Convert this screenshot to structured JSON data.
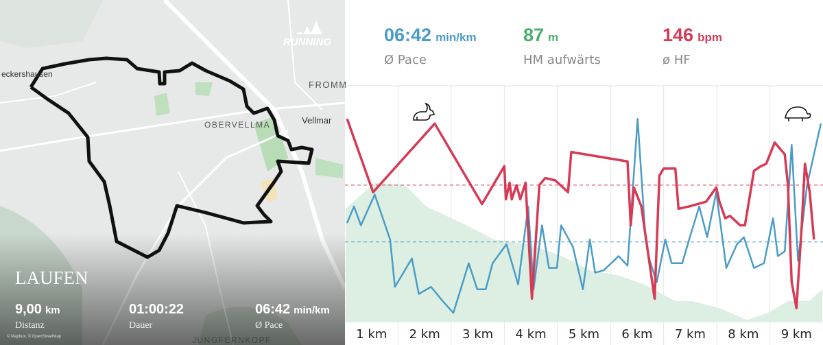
{
  "map": {
    "brand": "RUNNING",
    "activity": "LAUFEN",
    "places": [
      "eckershausen",
      "OBERVELLMA",
      "Vellmar",
      "FROMM",
      "JUNGFERNKOPF"
    ],
    "attribution": "© Mapbox, © OpenStreetMap",
    "stats": [
      {
        "value": "9,00",
        "unit": "km",
        "label": "Distanz"
      },
      {
        "value": "01:00:22",
        "label": "Dauer"
      },
      {
        "value": "06:42",
        "unit": "min/km",
        "label": "Ø Pace"
      }
    ]
  },
  "summary": [
    {
      "value": "06:42",
      "unit": "min/km",
      "label": "Ø Pace",
      "color": "#4a9cc7"
    },
    {
      "value": "87",
      "unit": "m",
      "label": "HM aufwärts",
      "color": "#4caf6e"
    },
    {
      "value": "146",
      "unit": "bpm",
      "label": "ø HF",
      "color": "#d63a54"
    }
  ],
  "chart_data": {
    "type": "line",
    "xlim": [
      0.5,
      9.5
    ],
    "ylim": [
      0,
      100
    ],
    "xticks": [
      {
        "value": 1,
        "label": "1 km"
      },
      {
        "value": 2,
        "label": "2 km"
      },
      {
        "value": 3,
        "label": "3 km"
      },
      {
        "value": 4,
        "label": "4 km"
      },
      {
        "value": 5,
        "label": "5 km"
      },
      {
        "value": 6,
        "label": "6 km"
      },
      {
        "value": 7,
        "label": "7 km"
      },
      {
        "value": 8,
        "label": "8 km"
      },
      {
        "value": 9,
        "label": "9 km"
      }
    ],
    "reference_lines": [
      {
        "value": 58,
        "color": "#d63a54"
      },
      {
        "value": 34,
        "color": "#4a9cc7"
      }
    ],
    "series": [
      {
        "type": "area",
        "color": "#dcefe2",
        "x": [
          0.51,
          1.06,
          1.63,
          2.03,
          2.41,
          2.79,
          3.31,
          3.95,
          4.59,
          5.11,
          5.62,
          6.14,
          6.72,
          7.04,
          7.55,
          8.07,
          8.46,
          8.84,
          9.23,
          9.49
        ],
        "values": [
          48,
          59,
          58,
          49,
          45,
          41,
          35,
          33,
          28,
          22,
          20,
          16,
          9,
          9,
          6,
          1,
          4,
          9,
          9,
          14
        ]
      },
      {
        "type": "line",
        "color": "#4a9cc7",
        "x": [
          0.54,
          0.67,
          0.8,
          1.06,
          1.35,
          1.44,
          1.76,
          1.89,
          2.12,
          2.34,
          2.54,
          2.83,
          2.99,
          3.15,
          3.28,
          3.54,
          3.76,
          3.95,
          4.05,
          4.21,
          4.34,
          4.49,
          4.57,
          4.79,
          4.98,
          5.11,
          5.21,
          5.37,
          5.56,
          5.65,
          5.82,
          6.01,
          6.16,
          6.24,
          6.37,
          6.53,
          6.65,
          6.85,
          6.98,
          7.17,
          7.32,
          7.49,
          7.68,
          7.88,
          8.01,
          8.2,
          8.39,
          8.56,
          8.65,
          8.78,
          8.91,
          9.03,
          9.2,
          9.46
        ],
        "values": [
          42,
          49,
          41,
          54,
          35,
          15,
          27,
          12,
          15,
          9,
          4,
          25,
          14,
          14,
          25,
          33,
          16,
          49,
          14,
          41,
          23,
          23,
          41,
          32,
          14,
          35,
          21,
          22,
          26,
          28,
          24,
          86,
          35,
          26,
          17,
          35,
          25,
          25,
          35,
          49,
          36,
          55,
          23,
          33,
          36,
          23,
          25,
          44,
          28,
          30,
          75,
          26,
          58,
          84
        ]
      },
      {
        "type": "line",
        "color": "#d63a54",
        "x": [
          0.54,
          1.03,
          2.19,
          3.08,
          3.5,
          3.53,
          3.6,
          3.64,
          3.73,
          3.8,
          3.9,
          4.02,
          4.16,
          4.27,
          4.46,
          4.7,
          4.76,
          5.82,
          5.88,
          5.94,
          6.08,
          6.33,
          6.42,
          6.5,
          6.72,
          6.78,
          6.98,
          7.3,
          7.49,
          7.55,
          7.66,
          7.75,
          7.94,
          8.03,
          8.2,
          8.33,
          8.43,
          8.59,
          8.78,
          8.84,
          8.91,
          9.0,
          9.1,
          9.16,
          9.25,
          9.33
        ],
        "values": [
          86,
          55,
          84,
          50,
          66,
          52,
          59,
          52,
          58,
          52,
          59,
          10,
          58,
          61,
          60,
          55,
          72,
          68,
          41,
          57,
          49,
          10,
          62,
          65,
          65,
          48,
          49,
          51,
          57,
          51,
          44,
          45,
          41,
          41,
          64,
          66,
          67,
          76,
          71,
          58,
          17,
          6,
          41,
          67,
          55,
          35
        ]
      }
    ]
  }
}
